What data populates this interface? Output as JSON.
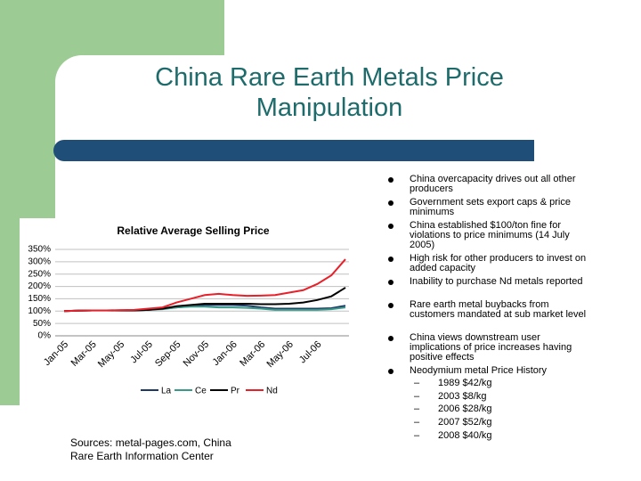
{
  "title": "China Rare Earth Metals Price Manipulation",
  "bullets": [
    "China overcapacity drives out all other producers",
    "Government sets export caps & price minimums",
    "China established $100/ton fine for violations to price minimums (14 July 2005)",
    "High risk for other producers to invest on added capacity",
    "Inability to purchase Nd metals reported",
    "Rare earth metal buybacks from customers mandated at sub market level",
    "China views downstream user implications of price increases having positive effects",
    "Neodymium metal Price History"
  ],
  "sub_bullets": [
    "1989 $42/kg",
    "2003 $8/kg",
    "2006 $28/kg",
    "2007 $52/kg",
    "2008 $40/kg"
  ],
  "sources": "Sources: metal-pages.com, China Rare Earth Information Center",
  "chart_data": {
    "type": "line",
    "title": "Relative Average Selling Price",
    "categories": [
      "Jan-05",
      null,
      "Mar-05",
      null,
      "May-05",
      null,
      "Jul-05",
      null,
      "Sep-05",
      null,
      "Nov-05",
      null,
      "Jan-06",
      null,
      "Mar-06",
      null,
      "May-06",
      null,
      "Jul-06",
      null,
      null
    ],
    "series": [
      {
        "name": "La",
        "color": "#1f3864",
        "values": [
          100,
          102,
          103,
          103,
          103,
          103,
          105,
          110,
          115,
          120,
          125,
          125,
          125,
          122,
          115,
          110,
          110,
          110,
          110,
          112,
          122
        ]
      },
      {
        "name": "Ce",
        "color": "#3a9a8a",
        "values": [
          100,
          102,
          103,
          103,
          103,
          103,
          105,
          108,
          115,
          118,
          118,
          115,
          115,
          113,
          110,
          105,
          105,
          105,
          105,
          108,
          115
        ]
      },
      {
        "name": "Pr",
        "color": "#000000",
        "values": [
          100,
          102,
          103,
          103,
          103,
          103,
          105,
          110,
          120,
          125,
          130,
          130,
          130,
          130,
          128,
          128,
          130,
          135,
          145,
          160,
          195
        ]
      },
      {
        "name": "Nd",
        "color": "#e8202a",
        "values": [
          100,
          102,
          103,
          103,
          104,
          105,
          110,
          115,
          135,
          150,
          165,
          170,
          165,
          162,
          163,
          165,
          175,
          185,
          210,
          245,
          310
        ]
      }
    ],
    "ylim": [
      0,
      350
    ],
    "yticks": [
      {
        "value": 0,
        "label": "0%"
      },
      {
        "value": 50,
        "label": "50%"
      },
      {
        "value": 100,
        "label": "100%"
      },
      {
        "value": 150,
        "label": "150%"
      },
      {
        "value": 200,
        "label": "200%"
      },
      {
        "value": 250,
        "label": "250%"
      },
      {
        "value": 300,
        "label": "300%"
      },
      {
        "value": 350,
        "label": "350%"
      }
    ],
    "grid": true,
    "legend": "bottom"
  }
}
